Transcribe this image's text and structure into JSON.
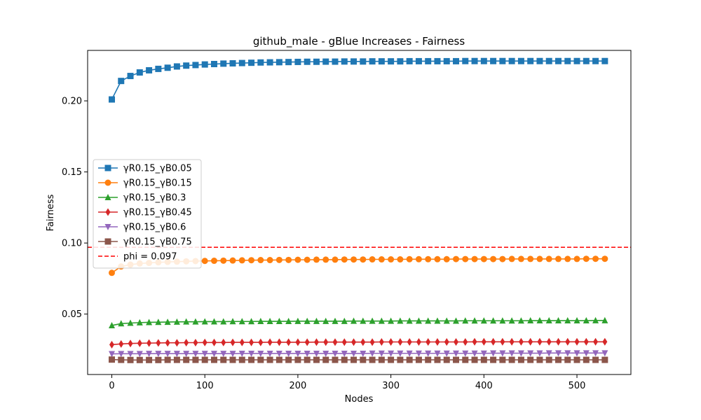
{
  "chart_data": {
    "type": "line",
    "title": "github_male - gBlue Increases - Fairness",
    "xlabel": "Nodes",
    "ylabel": "Fairness",
    "xlim": [
      -26,
      558
    ],
    "ylim": [
      0.0075,
      0.2355
    ],
    "xticks": [
      0,
      100,
      200,
      300,
      400,
      500
    ],
    "yticks": [
      0.05,
      0.1,
      0.15,
      0.2
    ],
    "ytick_labels": [
      "0.05",
      "0.10",
      "0.15",
      "0.20"
    ],
    "xtick_labels": [
      "0",
      "100",
      "200",
      "300",
      "400",
      "500"
    ],
    "grid": false,
    "legend_position": "center-left",
    "x": [
      0,
      10,
      20,
      30,
      40,
      50,
      60,
      70,
      80,
      90,
      100,
      110,
      120,
      130,
      140,
      150,
      160,
      170,
      180,
      190,
      200,
      210,
      220,
      230,
      240,
      250,
      260,
      270,
      280,
      290,
      300,
      310,
      320,
      330,
      340,
      350,
      360,
      370,
      380,
      390,
      400,
      410,
      420,
      430,
      440,
      450,
      460,
      470,
      480,
      490,
      500,
      510,
      520,
      530
    ],
    "series": [
      {
        "name": "γR0.15_γB0.05",
        "color": "#1f77b4",
        "marker": "square",
        "start": 0.201,
        "end": 0.228,
        "rate": 0.085,
        "values": [
          0.201,
          0.214,
          0.2175,
          0.22,
          0.2215,
          0.2225,
          0.2233,
          0.2242,
          0.2248,
          0.2252,
          0.2256,
          0.2259,
          0.2262,
          0.2264,
          0.2266,
          0.2268,
          0.227,
          0.2271,
          0.2272,
          0.2273,
          0.2274,
          0.2275,
          0.2275,
          0.2276,
          0.2276,
          0.2277,
          0.2277,
          0.2277,
          0.2278,
          0.2278,
          0.2278,
          0.2278,
          0.2279,
          0.2279,
          0.2279,
          0.2279,
          0.2279,
          0.2279,
          0.228,
          0.228,
          0.228,
          0.228,
          0.228,
          0.228,
          0.228,
          0.228,
          0.228,
          0.228,
          0.228,
          0.228,
          0.228,
          0.228,
          0.228,
          0.228
        ]
      },
      {
        "name": "γR0.15_γB0.15",
        "color": "#ff7f0e",
        "marker": "circle",
        "values": [
          0.079,
          0.0835,
          0.0848,
          0.0856,
          0.086,
          0.0864,
          0.0867,
          0.0869,
          0.0871,
          0.0873,
          0.0874,
          0.0875,
          0.0876,
          0.0877,
          0.0878,
          0.0879,
          0.088,
          0.088,
          0.0881,
          0.0881,
          0.0882,
          0.0882,
          0.0883,
          0.0883,
          0.0883,
          0.0884,
          0.0884,
          0.0884,
          0.0885,
          0.0885,
          0.0885,
          0.0885,
          0.0886,
          0.0886,
          0.0886,
          0.0886,
          0.0886,
          0.0887,
          0.0887,
          0.0887,
          0.0887,
          0.0887,
          0.0887,
          0.0888,
          0.0888,
          0.0888,
          0.0888,
          0.0888,
          0.0888,
          0.0888,
          0.0888,
          0.0889,
          0.0889,
          0.0889
        ]
      },
      {
        "name": "γR0.15_γB0.3",
        "color": "#2ca02c",
        "marker": "triangle-up",
        "values": [
          0.042,
          0.0433,
          0.0437,
          0.044,
          0.0442,
          0.0443,
          0.0444,
          0.0445,
          0.0446,
          0.0446,
          0.0447,
          0.0447,
          0.0447,
          0.0448,
          0.0448,
          0.0448,
          0.0449,
          0.0449,
          0.0449,
          0.0449,
          0.045,
          0.045,
          0.045,
          0.045,
          0.045,
          0.045,
          0.0451,
          0.0451,
          0.0451,
          0.0451,
          0.0451,
          0.0452,
          0.0452,
          0.0452,
          0.0452,
          0.0452,
          0.0452,
          0.0452,
          0.0453,
          0.0453,
          0.0453,
          0.0453,
          0.0453,
          0.0453,
          0.0453,
          0.0454,
          0.0454,
          0.0454,
          0.0454,
          0.0454,
          0.0454,
          0.0454,
          0.0455,
          0.0455
        ]
      },
      {
        "name": "γR0.15_γB0.45",
        "color": "#d62728",
        "marker": "diamond",
        "values": [
          0.0285,
          0.029,
          0.0293,
          0.0295,
          0.0296,
          0.0297,
          0.0298,
          0.0298,
          0.0299,
          0.0299,
          0.03,
          0.03,
          0.03,
          0.0301,
          0.0301,
          0.0301,
          0.0301,
          0.0302,
          0.0302,
          0.0302,
          0.0302,
          0.0302,
          0.0303,
          0.0303,
          0.0303,
          0.0303,
          0.0303,
          0.0303,
          0.0303,
          0.0304,
          0.0304,
          0.0304,
          0.0304,
          0.0304,
          0.0304,
          0.0304,
          0.0304,
          0.0304,
          0.0304,
          0.0305,
          0.0305,
          0.0305,
          0.0305,
          0.0305,
          0.0305,
          0.0305,
          0.0305,
          0.0305,
          0.0305,
          0.0305,
          0.0305,
          0.0305,
          0.0305,
          0.0305
        ]
      },
      {
        "name": "γR0.15_γB0.6",
        "color": "#9467bd",
        "marker": "triangle-down",
        "values": [
          0.022,
          0.0221,
          0.0221,
          0.0221,
          0.0222,
          0.0222,
          0.0222,
          0.0222,
          0.0222,
          0.0222,
          0.0222,
          0.0222,
          0.0222,
          0.0222,
          0.0223,
          0.0223,
          0.0223,
          0.0223,
          0.0223,
          0.0223,
          0.0223,
          0.0223,
          0.0223,
          0.0223,
          0.0223,
          0.0223,
          0.0223,
          0.0223,
          0.0224,
          0.0224,
          0.0224,
          0.0224,
          0.0224,
          0.0224,
          0.0224,
          0.0224,
          0.0224,
          0.0224,
          0.0224,
          0.0224,
          0.0224,
          0.0225,
          0.0225,
          0.0225,
          0.0225,
          0.0225,
          0.0225,
          0.0226,
          0.0226,
          0.0226,
          0.0226,
          0.0226,
          0.0226,
          0.0226
        ]
      },
      {
        "name": "γR0.15_γB0.75",
        "color": "#8c564b",
        "marker": "square",
        "values": [
          0.018,
          0.0178,
          0.0177,
          0.0177,
          0.0177,
          0.0177,
          0.0178,
          0.0178,
          0.0178,
          0.0178,
          0.0178,
          0.0178,
          0.0178,
          0.0178,
          0.0178,
          0.0178,
          0.0178,
          0.0178,
          0.0178,
          0.0178,
          0.0178,
          0.0178,
          0.0178,
          0.0178,
          0.0178,
          0.0178,
          0.0178,
          0.0178,
          0.0178,
          0.0178,
          0.0178,
          0.0178,
          0.0178,
          0.0178,
          0.0178,
          0.0178,
          0.0178,
          0.0178,
          0.0178,
          0.0178,
          0.0178,
          0.0178,
          0.0178,
          0.0178,
          0.0178,
          0.0178,
          0.0178,
          0.0178,
          0.0178,
          0.0178,
          0.0178,
          0.0178,
          0.0178,
          0.0178
        ]
      }
    ],
    "hline": {
      "name": "phi = 0.097",
      "value": 0.097,
      "color": "#ff0000",
      "style": "dashed"
    }
  }
}
